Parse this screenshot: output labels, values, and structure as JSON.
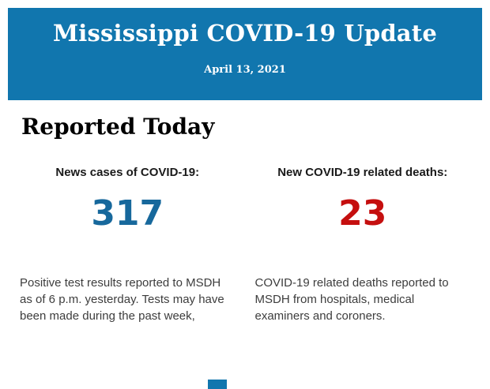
{
  "header": {
    "title": "Mississippi COVID-19 Update",
    "date": "April 13, 2021",
    "background_color": "#1176ae",
    "text_color": "#ffffff"
  },
  "main": {
    "section_title": "Reported Today",
    "label_color": "#1a1a1a",
    "body_text_color": "#3d3d3d",
    "stats": [
      {
        "label": "News cases of COVID-19:",
        "value": "317",
        "value_color": "#17689c",
        "description": "Positive test results reported to MSDH as of 6 p.m. yesterday. Tests may have been made during the past week,"
      },
      {
        "label": "New COVID-19 related deaths:",
        "value": "23",
        "value_color": "#c50f0f",
        "description": "COVID-19 related deaths reported to MSDH from hospitals, medical examiners and coroners."
      }
    ]
  },
  "footer": {
    "partial_element_color": "#1176ae"
  }
}
